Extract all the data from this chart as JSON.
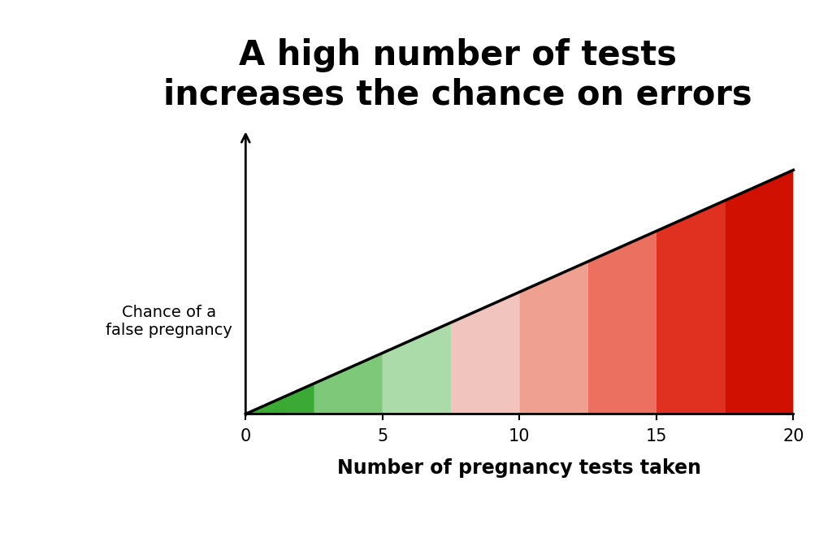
{
  "title": "A high number of tests\nincreases the chance on errors",
  "ylabel": "Chance of a\nfalse pregnancy",
  "xlabel": "Number of pregnancy tests taken",
  "x_ticks": [
    0,
    5,
    10,
    15,
    20
  ],
  "x_max": 20,
  "y_max": 12,
  "background_color": "#ffffff",
  "title_fontsize": 30,
  "xlabel_fontsize": 17,
  "ylabel_fontsize": 14,
  "band_edges": [
    0,
    2.5,
    5,
    7.5,
    10,
    12.5,
    15,
    17.5,
    20
  ],
  "band_colors": [
    "#3aaa35",
    "#7ec87a",
    "#aadba8",
    "#f2c4be",
    "#f0a090",
    "#eb7060",
    "#e03020",
    "#d01000"
  ]
}
